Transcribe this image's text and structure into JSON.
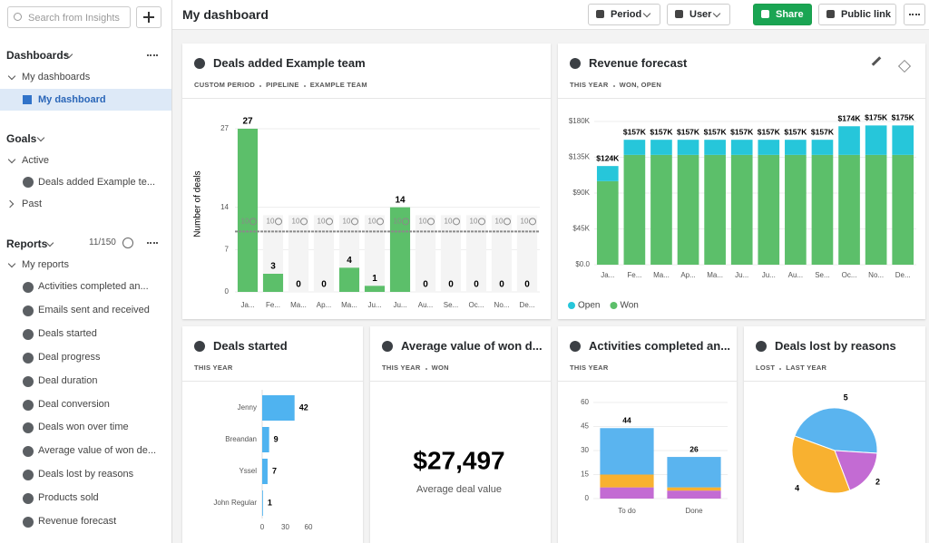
{
  "sidebar": {
    "search_placeholder": "Search from Insights",
    "dashboards": {
      "heading": "Dashboards",
      "group": "My dashboards",
      "items": [
        "My dashboard"
      ]
    },
    "goals": {
      "heading": "Goals",
      "active": "Active",
      "items": [
        "Deals added Example te..."
      ],
      "past": "Past"
    },
    "reports": {
      "heading": "Reports",
      "count": "11/150",
      "group": "My reports",
      "items": [
        "Activities completed an...",
        "Emails sent and received",
        "Deals started",
        "Deal progress",
        "Deal duration",
        "Deal conversion",
        "Deals won over time",
        "Average value of won de...",
        "Deals lost by reasons",
        "Products sold",
        "Revenue forecast"
      ]
    }
  },
  "header": {
    "title": "My dashboard",
    "buttons": [
      "Period",
      "User",
      "Share",
      "Public link"
    ]
  },
  "chart_data": [
    {
      "type": "bar",
      "title": "Deals added Example team",
      "subtitle": [
        "CUSTOM PERIOD",
        "PIPELINE",
        "EXAMPLE TEAM"
      ],
      "y_label": "Number of deals",
      "categories": [
        "Ja...",
        "Fe...",
        "Ma...",
        "Ap...",
        "Ma...",
        "Ju...",
        "Ju...",
        "Au...",
        "Se...",
        "Oc...",
        "No...",
        "De..."
      ],
      "values": [
        27,
        3,
        0,
        0,
        4,
        1,
        14,
        0,
        0,
        0,
        0,
        0
      ],
      "color": "#5cbf6a",
      "ylim": [
        0,
        27
      ],
      "yticks": [
        0,
        7,
        14,
        27
      ],
      "grid": true,
      "goal": 10,
      "goal_color": "#8a8a8a"
    },
    {
      "type": "stacked_bar",
      "title": "Revenue forecast",
      "subtitle": [
        "THIS YEAR",
        "WON, OPEN"
      ],
      "categories": [
        "Ja...",
        "Fe...",
        "Ma...",
        "Ap...",
        "Ma...",
        "Ju...",
        "Ju...",
        "Au...",
        "Se...",
        "Oc...",
        "No...",
        "De..."
      ],
      "series": [
        {
          "name": "Won",
          "color": "#5cbf6a",
          "values": [
            105000,
            138000,
            138000,
            138000,
            138000,
            138000,
            138000,
            138000,
            138000,
            138000,
            138000,
            138000
          ]
        },
        {
          "name": "Open",
          "color": "#26c6da",
          "values": [
            19000,
            19000,
            19000,
            19000,
            19000,
            19000,
            19000,
            19000,
            19000,
            36000,
            37000,
            37000
          ]
        }
      ],
      "total_labels": [
        "$124K",
        "$157K",
        "$157K",
        "$157K",
        "$157K",
        "$157K",
        "$157K",
        "$157K",
        "$157K",
        "$174K",
        "$175K",
        "$175K"
      ],
      "ylim": [
        0,
        180000
      ],
      "yticks": [
        {
          "value": 0,
          "label": "$0.0"
        },
        {
          "value": 45000,
          "label": "$45K"
        },
        {
          "value": 90000,
          "label": "$90K"
        },
        {
          "value": 135000,
          "label": "$135K"
        },
        {
          "value": 180000,
          "label": "$180K"
        }
      ],
      "grid": true,
      "legend": "bottom-left",
      "legend_order": [
        1,
        0
      ]
    },
    {
      "type": "hbar",
      "title": "Deals started",
      "subtitle": [
        "THIS YEAR"
      ],
      "categories": [
        "Jenny",
        "Breandan",
        "Yssel",
        "John Regular"
      ],
      "values": [
        42,
        9,
        7,
        1
      ],
      "color": "#4fb3f0",
      "xlim": [
        0,
        60
      ],
      "xticks": [
        0,
        30,
        60
      ]
    },
    {
      "type": "number",
      "title": "Average value of won d...",
      "subtitle": [
        "THIS YEAR",
        "WON"
      ],
      "value": "$27,497",
      "label": "Average deal value"
    },
    {
      "type": "stacked_bar",
      "title": "Activities completed an...",
      "subtitle": [
        "THIS YEAR"
      ],
      "categories": [
        "To do",
        "Done"
      ],
      "series": [
        {
          "color": "#c36bd3",
          "values": [
            7,
            5
          ]
        },
        {
          "color": "#f8b130",
          "values": [
            8,
            2
          ]
        },
        {
          "color": "#5ab4ef",
          "values": [
            29,
            19
          ]
        }
      ],
      "total_labels": [
        "44",
        "26"
      ],
      "ylim": [
        0,
        60
      ],
      "yticks": [
        0,
        15,
        30,
        45,
        60
      ],
      "grid": true
    },
    {
      "type": "pie",
      "title": "Deals lost by reasons",
      "subtitle": [
        "LOST",
        "LAST YEAR"
      ],
      "values": [
        5,
        2,
        4
      ],
      "colors": [
        "#5ab4ef",
        "#c36bd3",
        "#f8b130"
      ]
    }
  ]
}
